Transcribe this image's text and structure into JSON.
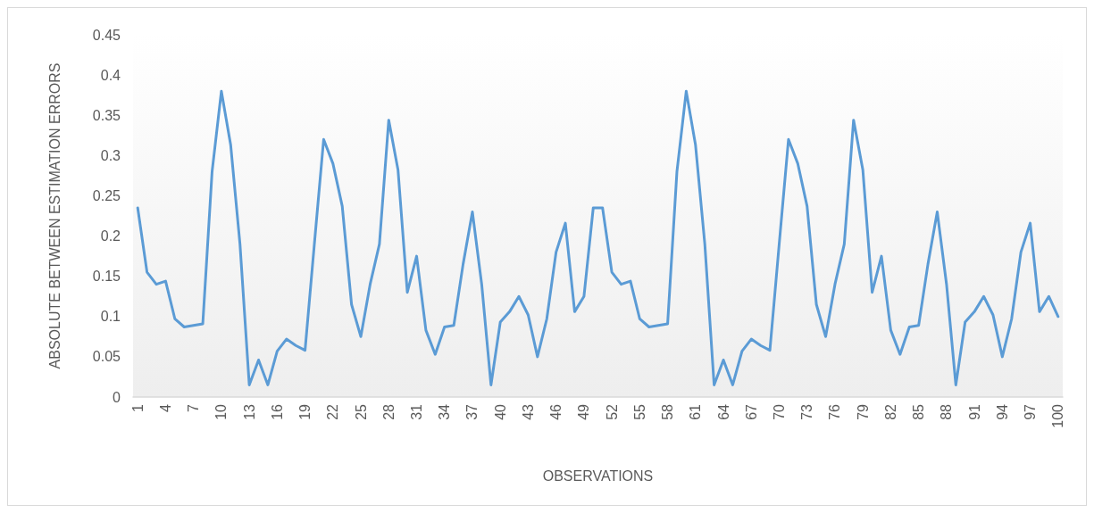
{
  "chart_data": {
    "type": "line",
    "xlabel": "OBSERVATIONS",
    "ylabel": "ABSOLUTE BETWEEN ESTIMATION ERRORS",
    "categories": [
      "1",
      null,
      null,
      "4",
      null,
      null,
      "7",
      null,
      null,
      "10",
      null,
      null,
      "13",
      null,
      null,
      "16",
      null,
      null,
      "19",
      null,
      null,
      "22",
      null,
      null,
      "25",
      null,
      null,
      "28",
      null,
      null,
      "31",
      null,
      null,
      "34",
      null,
      null,
      "37",
      null,
      null,
      "40",
      null,
      null,
      "43",
      null,
      null,
      "46",
      null,
      null,
      "49",
      null,
      null,
      "52",
      null,
      null,
      "55",
      null,
      null,
      "58",
      null,
      null,
      "61",
      null,
      null,
      "64",
      null,
      null,
      "67",
      null,
      null,
      "70",
      null,
      null,
      "73",
      null,
      null,
      "76",
      null,
      null,
      "79",
      null,
      null,
      "82",
      null,
      null,
      "85",
      null,
      null,
      "88",
      null,
      null,
      "91",
      null,
      null,
      "94",
      null,
      null,
      "97",
      null,
      null,
      "100"
    ],
    "series": [
      {
        "color": "#5b9bd5",
        "values": [
          0.235,
          0.155,
          0.14,
          0.144,
          0.097,
          0.087,
          0.089,
          0.091,
          0.28,
          0.38,
          0.313,
          0.19,
          0.015,
          0.046,
          0.015,
          0.057,
          0.072,
          0.064,
          0.058,
          0.19,
          0.32,
          0.29,
          0.237,
          0.115,
          0.075,
          0.14,
          0.19,
          0.344,
          0.282,
          0.13,
          0.175,
          0.083,
          0.053,
          0.087,
          0.089,
          0.165,
          0.23,
          0.14,
          0.015,
          0.093,
          0.106,
          0.125,
          0.102,
          0.05,
          0.097,
          0.18,
          0.216,
          0.106,
          0.125,
          0.235,
          0.235,
          0.155,
          0.14,
          0.144,
          0.097,
          0.087,
          0.089,
          0.091,
          0.28,
          0.38,
          0.313,
          0.19,
          0.015,
          0.046,
          0.015,
          0.057,
          0.072,
          0.064,
          0.058,
          0.19,
          0.32,
          0.29,
          0.237,
          0.115,
          0.075,
          0.14,
          0.19,
          0.344,
          0.282,
          0.13,
          0.175,
          0.083,
          0.053,
          0.087,
          0.089,
          0.165,
          0.23,
          0.14,
          0.015,
          0.093,
          0.106,
          0.125,
          0.102,
          0.05,
          0.097,
          0.18,
          0.216,
          0.106,
          0.125,
          0.1
        ]
      }
    ],
    "ylim": [
      0,
      0.45
    ],
    "yticks": [
      0,
      0.05,
      0.1,
      0.15,
      0.2,
      0.25,
      0.3,
      0.35,
      0.4,
      0.45
    ],
    "grid": false,
    "marker": "none",
    "line_style": "solid"
  }
}
